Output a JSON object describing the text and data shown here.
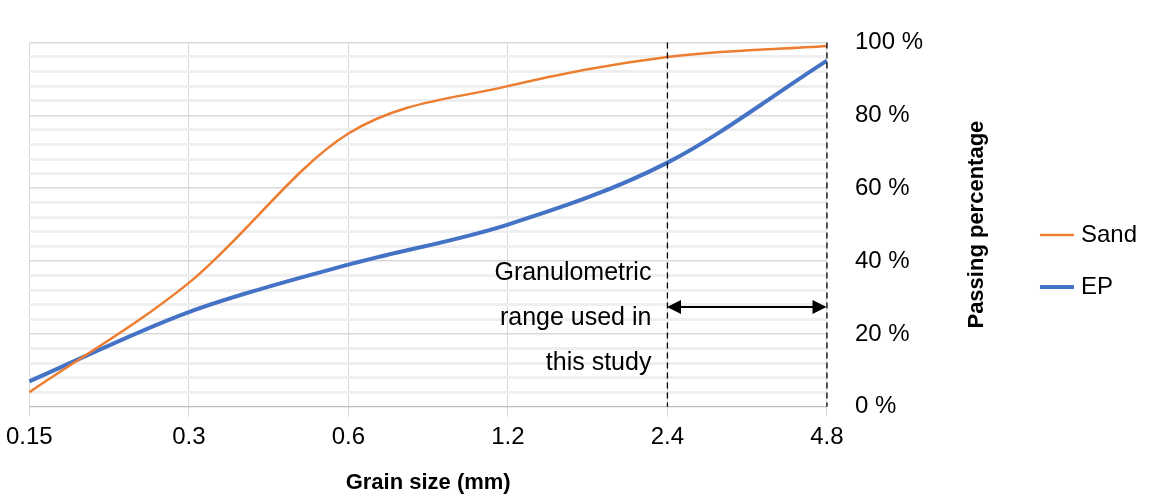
{
  "chart_data": {
    "type": "line",
    "xlabel": "Grain size (mm)",
    "ylabel": "Passing percentage",
    "categories": [
      "0.15",
      "0.3",
      "0.6",
      "1.2",
      "2.4",
      "4.8"
    ],
    "series": [
      {
        "name": "Sand",
        "color": "#ed7d31",
        "values": [
          4,
          34,
          75,
          88,
          96,
          99
        ]
      },
      {
        "name": "EP",
        "color": "#4472c4",
        "values": [
          7,
          26,
          39,
          50,
          67,
          95
        ]
      }
    ],
    "ylim": [
      0,
      100
    ],
    "yticks": [
      {
        "value": 0,
        "label": "0 %"
      },
      {
        "value": 4,
        "label": null
      },
      {
        "value": 8,
        "label": null
      },
      {
        "value": 12,
        "label": null
      },
      {
        "value": 16,
        "label": null
      },
      {
        "value": 20,
        "label": "20 %"
      },
      {
        "value": 24,
        "label": null
      },
      {
        "value": 28,
        "label": null
      },
      {
        "value": 32,
        "label": null
      },
      {
        "value": 36,
        "label": null
      },
      {
        "value": 40,
        "label": "40 %"
      },
      {
        "value": 44,
        "label": null
      },
      {
        "value": 48,
        "label": null
      },
      {
        "value": 52,
        "label": null
      },
      {
        "value": 56,
        "label": null
      },
      {
        "value": 60,
        "label": "60 %"
      },
      {
        "value": 64,
        "label": null
      },
      {
        "value": 68,
        "label": null
      },
      {
        "value": 72,
        "label": null
      },
      {
        "value": 76,
        "label": null
      },
      {
        "value": 80,
        "label": "80 %"
      },
      {
        "value": 84,
        "label": null
      },
      {
        "value": 88,
        "label": null
      },
      {
        "value": 92,
        "label": null
      },
      {
        "value": 96,
        "label": null
      },
      {
        "value": 100,
        "label": "100 %"
      }
    ],
    "ref_lines": [
      {
        "axis": "x",
        "value": "2.4",
        "color": "#000000",
        "line_style": "dashed"
      },
      {
        "axis": "x",
        "value": "4.8",
        "color": "#000000",
        "line_style": "dashed"
      }
    ],
    "annotations": [
      "Granulometric\nrange used in\nthis study"
    ],
    "grid": true,
    "legend": "right",
    "marker": "none",
    "line_style": "solid"
  }
}
